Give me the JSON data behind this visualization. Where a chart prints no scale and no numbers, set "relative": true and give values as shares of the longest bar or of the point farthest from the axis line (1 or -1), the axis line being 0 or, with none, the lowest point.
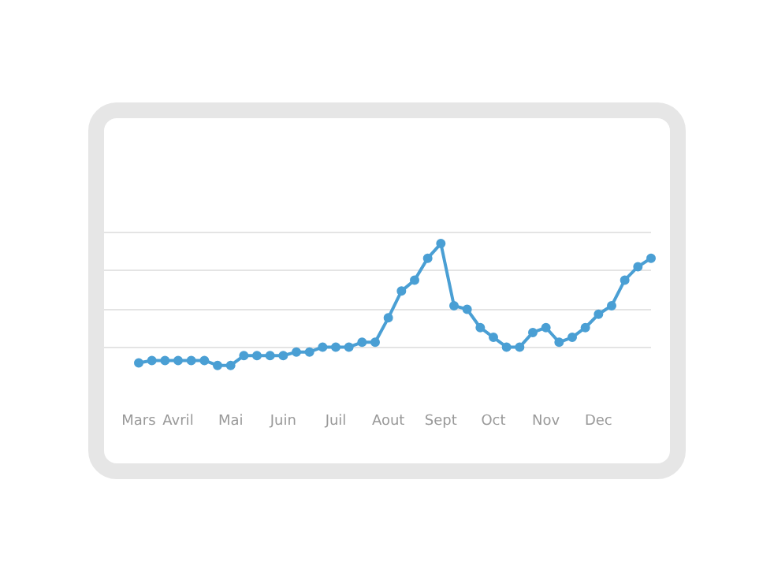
{
  "chart_data": {
    "type": "line",
    "relative": true,
    "marker": "circle",
    "line_style": "solid",
    "categories": [
      "Mars",
      null,
      null,
      "Avril",
      null,
      null,
      null,
      "Mai",
      null,
      null,
      null,
      "Juin",
      null,
      null,
      null,
      "Juil",
      null,
      null,
      null,
      "Aout",
      null,
      null,
      null,
      "Sept",
      null,
      null,
      null,
      "Oct",
      null,
      null,
      null,
      "Nov",
      null,
      null,
      null,
      "Dec",
      null,
      null,
      null,
      null
    ],
    "series": [
      {
        "color": "#4a9fd4",
        "values": [
          0.02,
          0.04,
          0.04,
          0.04,
          0.04,
          0.04,
          0,
          0,
          0.08,
          0.08,
          0.08,
          0.08,
          0.11,
          0.11,
          0.15,
          0.15,
          0.15,
          0.19,
          0.19,
          0.39,
          0.61,
          0.7,
          0.88,
          1,
          0.49,
          0.46,
          0.31,
          0.23,
          0.15,
          0.15,
          0.27,
          0.31,
          0.19,
          0.23,
          0.31,
          0.42,
          0.49,
          0.7,
          0.81,
          0.88
        ]
      }
    ]
  }
}
